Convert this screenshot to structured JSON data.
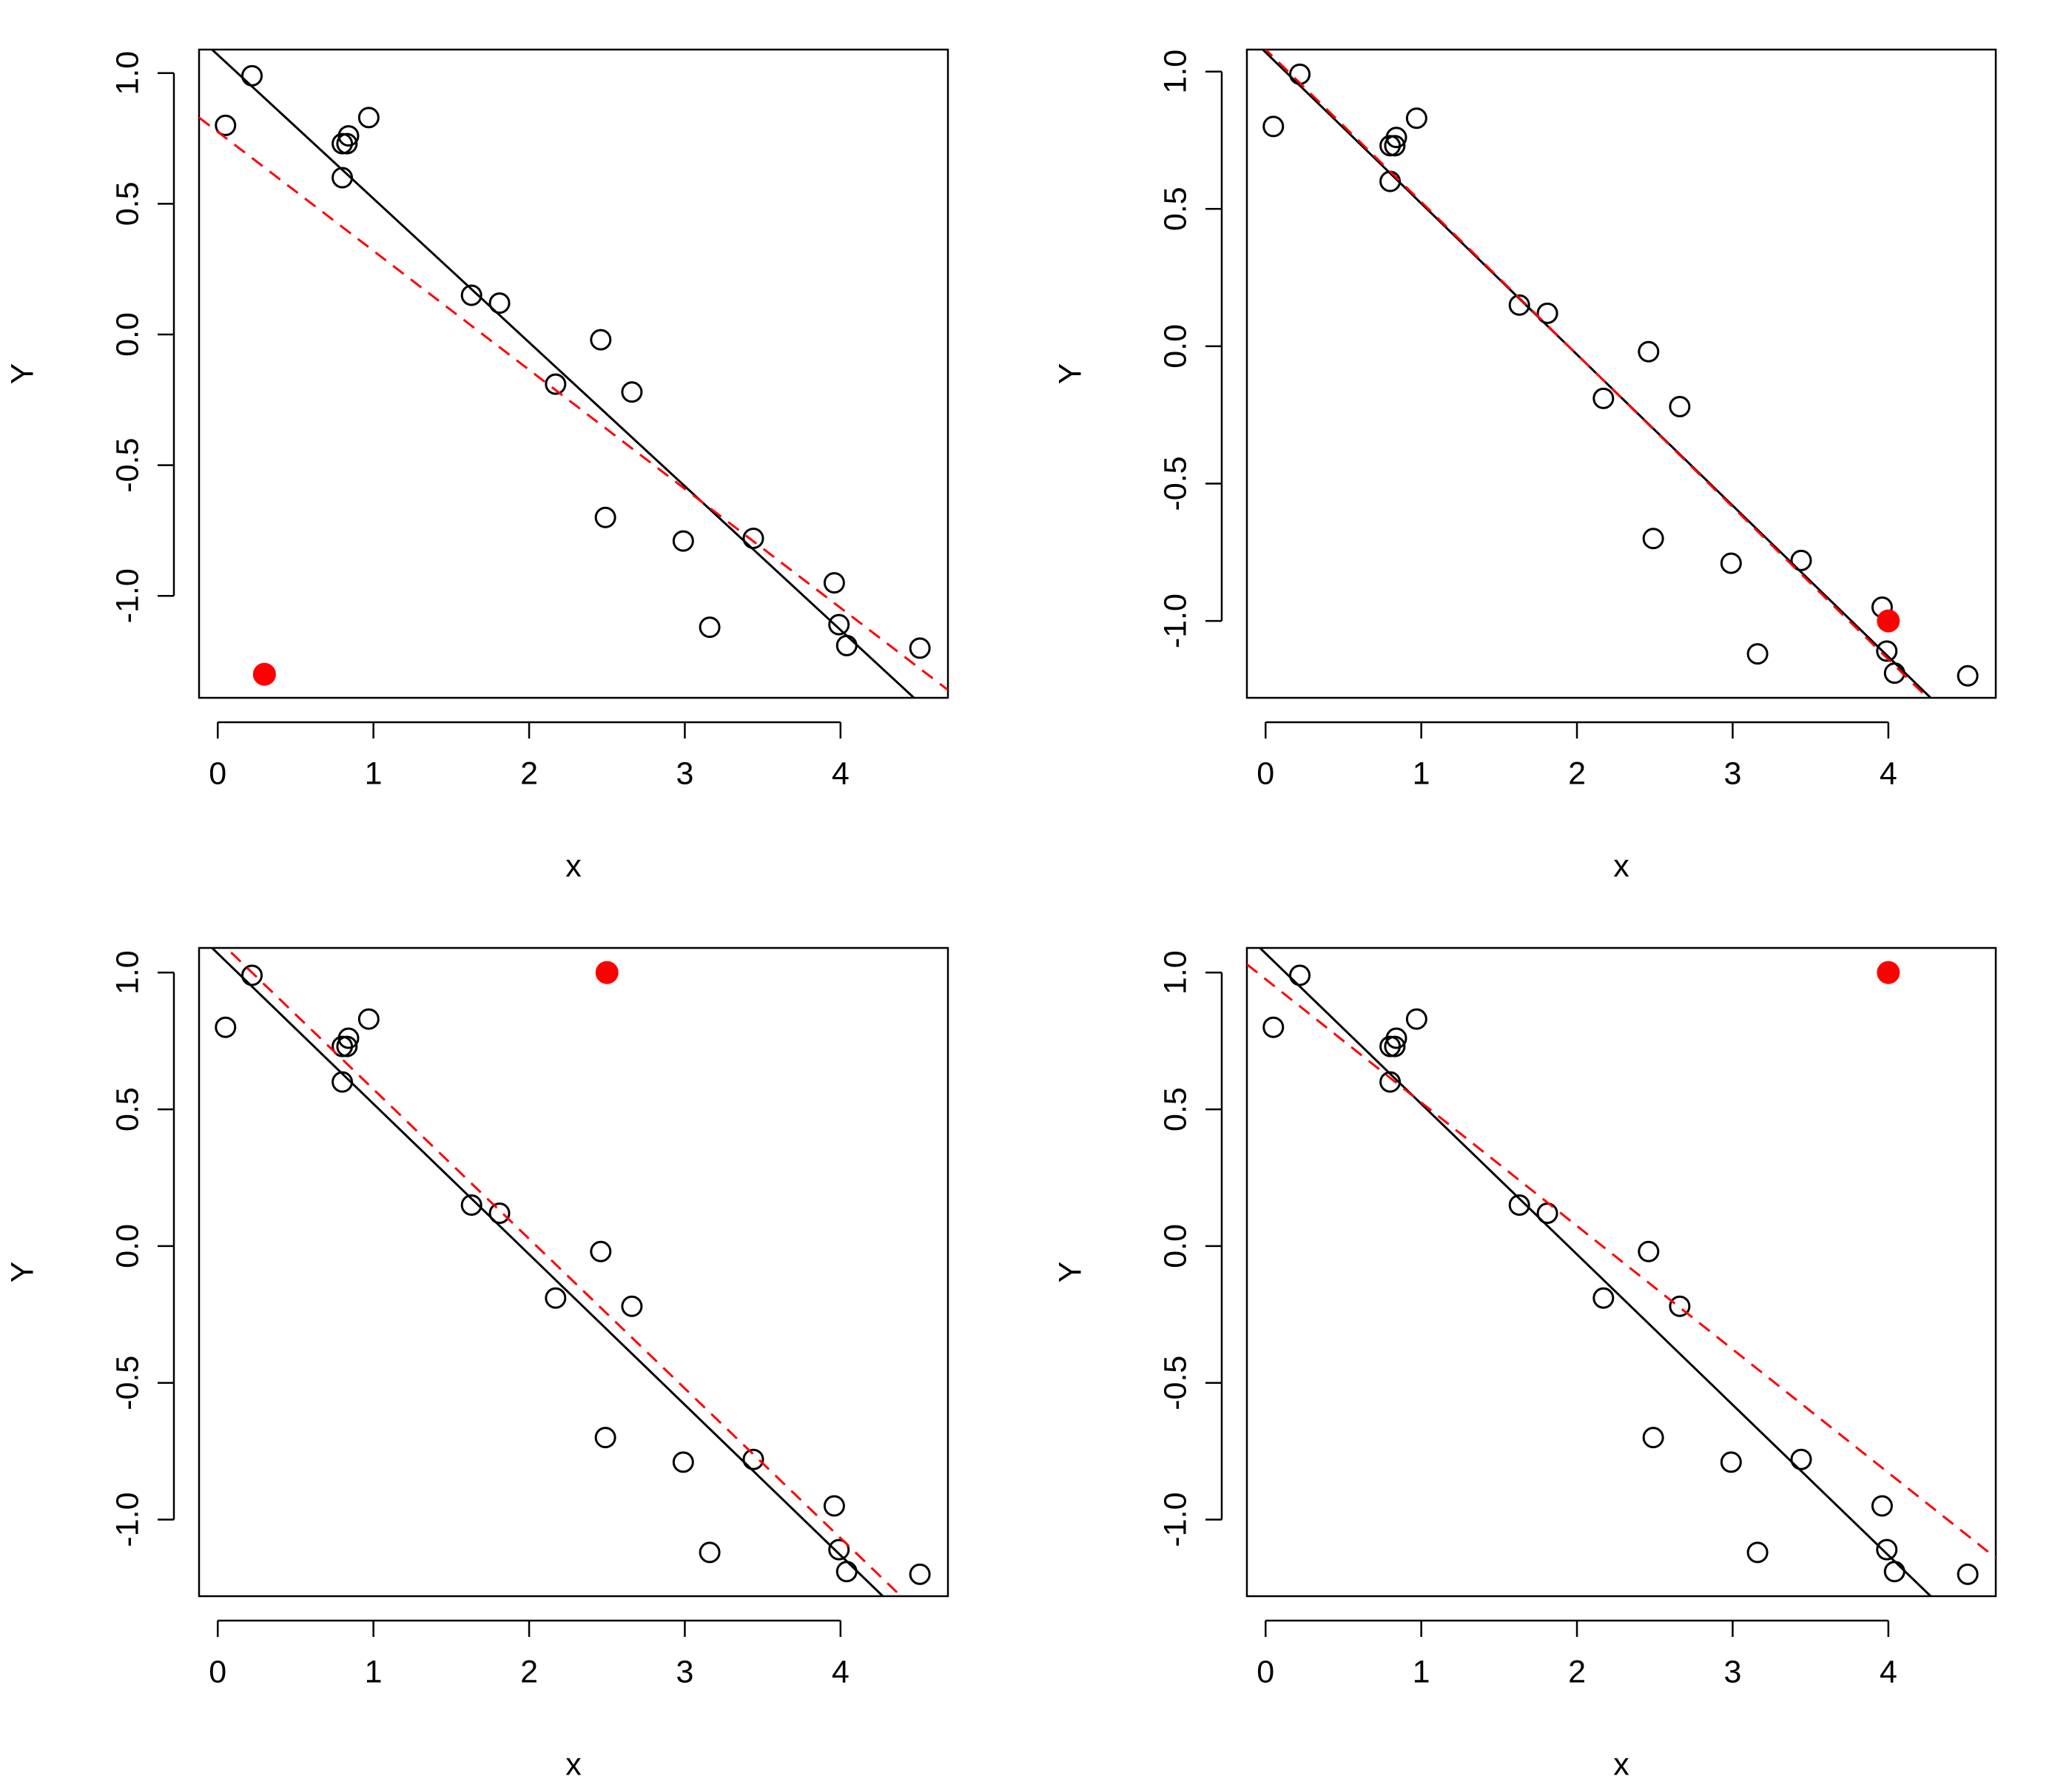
{
  "chart_data": [
    {
      "type": "scatter",
      "xlabel": "x",
      "ylabel": "Y",
      "xlim": [
        -0.12,
        4.69
      ],
      "ylim": [
        -1.39,
        1.09
      ],
      "xticks": [
        0,
        1,
        2,
        3,
        4
      ],
      "yticks": [
        {
          "value": -1,
          "label": "-1.0"
        },
        {
          "value": -0.5,
          "label": "-0.5"
        },
        {
          "value": 0,
          "label": "0.0"
        },
        {
          "value": 0.5,
          "label": "0.5"
        },
        {
          "value": 1,
          "label": "1.0"
        }
      ],
      "series": [
        {
          "color": "#000000",
          "marker": "open",
          "x": [
            0.05,
            0.22,
            0.8,
            0.8,
            0.84,
            0.83,
            0.97,
            1.63,
            1.81,
            2.17,
            2.46,
            2.49,
            2.66,
            2.99,
            3.16,
            3.44,
            3.96,
            3.99,
            4.04,
            4.51
          ],
          "values": [
            0.8,
            0.99,
            0.6,
            0.73,
            0.76,
            0.73,
            0.83,
            0.15,
            0.12,
            -0.19,
            -0.02,
            -0.7,
            -0.22,
            -0.79,
            -1.12,
            -0.78,
            -0.95,
            -1.11,
            -1.19,
            -1.2
          ]
        },
        {
          "color": "#ff0000",
          "marker": "filled",
          "x": [
            0.3
          ],
          "values": [
            -1.3
          ]
        },
        {
          "type": "line",
          "color": "#000000",
          "dash": false,
          "x": [
            -0.12,
            4.69
          ],
          "values": [
            1.136,
            -1.51
          ]
        },
        {
          "type": "line",
          "color": "#ff0000",
          "dash": true,
          "x": [
            -0.12,
            4.69
          ],
          "values": [
            0.83,
            -1.36
          ]
        }
      ]
    },
    {
      "type": "scatter",
      "xlabel": "x",
      "ylabel": "Y",
      "xlim": [
        -0.12,
        4.69
      ],
      "ylim": [
        -1.28,
        1.08
      ],
      "xticks": [
        0,
        1,
        2,
        3,
        4
      ],
      "yticks": [
        {
          "value": -1,
          "label": "-1.0"
        },
        {
          "value": -0.5,
          "label": "-0.5"
        },
        {
          "value": 0,
          "label": "0.0"
        },
        {
          "value": 0.5,
          "label": "0.5"
        },
        {
          "value": 1,
          "label": "1.0"
        }
      ],
      "series": [
        {
          "color": "#000000",
          "marker": "open",
          "x": [
            0.05,
            0.22,
            0.8,
            0.8,
            0.84,
            0.83,
            0.97,
            1.63,
            1.81,
            2.17,
            2.46,
            2.49,
            2.66,
            2.99,
            3.16,
            3.44,
            3.96,
            3.99,
            4.04,
            4.51
          ],
          "values": [
            0.8,
            0.99,
            0.6,
            0.73,
            0.76,
            0.73,
            0.83,
            0.15,
            0.12,
            -0.19,
            -0.02,
            -0.7,
            -0.22,
            -0.79,
            -1.12,
            -0.78,
            -0.95,
            -1.11,
            -1.19,
            -1.2
          ]
        },
        {
          "color": "#ff0000",
          "marker": "filled",
          "x": [
            4.0
          ],
          "values": [
            -1.0
          ]
        },
        {
          "type": "line",
          "color": "#000000",
          "dash": false,
          "x": [
            -0.12,
            4.69
          ],
          "values": [
            1.136,
            -1.51
          ]
        },
        {
          "type": "line",
          "color": "#ff0000",
          "dash": true,
          "x": [
            -0.12,
            4.69
          ],
          "values": [
            1.147,
            -1.523
          ]
        }
      ]
    },
    {
      "type": "scatter",
      "xlabel": "x",
      "ylabel": "Y",
      "xlim": [
        -0.12,
        4.69
      ],
      "ylim": [
        -1.28,
        1.09
      ],
      "xticks": [
        0,
        1,
        2,
        3,
        4
      ],
      "yticks": [
        {
          "value": -1,
          "label": "-1.0"
        },
        {
          "value": -0.5,
          "label": "-0.5"
        },
        {
          "value": 0,
          "label": "0.0"
        },
        {
          "value": 0.5,
          "label": "0.5"
        },
        {
          "value": 1,
          "label": "1.0"
        }
      ],
      "series": [
        {
          "color": "#000000",
          "marker": "open",
          "x": [
            0.05,
            0.22,
            0.8,
            0.8,
            0.84,
            0.83,
            0.97,
            1.63,
            1.81,
            2.17,
            2.46,
            2.49,
            2.66,
            2.99,
            3.16,
            3.44,
            3.96,
            3.99,
            4.04,
            4.51
          ],
          "values": [
            0.8,
            0.99,
            0.6,
            0.73,
            0.76,
            0.73,
            0.83,
            0.15,
            0.12,
            -0.19,
            -0.02,
            -0.7,
            -0.22,
            -0.79,
            -1.12,
            -0.78,
            -0.95,
            -1.11,
            -1.19,
            -1.2
          ]
        },
        {
          "color": "#ff0000",
          "marker": "filled",
          "x": [
            2.5
          ],
          "values": [
            1.0
          ]
        },
        {
          "type": "line",
          "color": "#000000",
          "dash": false,
          "x": [
            -0.12,
            4.69
          ],
          "values": [
            1.136,
            -1.51
          ]
        },
        {
          "type": "line",
          "color": "#ff0000",
          "dash": true,
          "x": [
            -0.12,
            4.69
          ],
          "values": [
            1.186,
            -1.445
          ]
        }
      ]
    },
    {
      "type": "scatter",
      "xlabel": "x",
      "ylabel": "Y",
      "xlim": [
        -0.12,
        4.69
      ],
      "ylim": [
        -1.28,
        1.09
      ],
      "xticks": [
        0,
        1,
        2,
        3,
        4
      ],
      "yticks": [
        {
          "value": -1,
          "label": "-1.0"
        },
        {
          "value": -0.5,
          "label": "-0.5"
        },
        {
          "value": 0,
          "label": "0.0"
        },
        {
          "value": 0.5,
          "label": "0.5"
        },
        {
          "value": 1,
          "label": "1.0"
        }
      ],
      "series": [
        {
          "color": "#000000",
          "marker": "open",
          "x": [
            0.05,
            0.22,
            0.8,
            0.8,
            0.84,
            0.83,
            0.97,
            1.63,
            1.81,
            2.17,
            2.46,
            2.49,
            2.66,
            2.99,
            3.16,
            3.44,
            3.96,
            3.99,
            4.04,
            4.51
          ],
          "values": [
            0.8,
            0.99,
            0.6,
            0.73,
            0.76,
            0.73,
            0.83,
            0.15,
            0.12,
            -0.19,
            -0.02,
            -0.7,
            -0.22,
            -0.79,
            -1.12,
            -0.78,
            -0.95,
            -1.11,
            -1.19,
            -1.2
          ]
        },
        {
          "color": "#ff0000",
          "marker": "filled",
          "x": [
            4.0
          ],
          "values": [
            1.0
          ]
        },
        {
          "type": "line",
          "color": "#000000",
          "dash": false,
          "x": [
            -0.12,
            4.69
          ],
          "values": [
            1.136,
            -1.51
          ]
        },
        {
          "type": "line",
          "color": "#ff0000",
          "dash": true,
          "x": [
            -0.12,
            4.69
          ],
          "values": [
            1.03,
            -1.14
          ]
        }
      ]
    }
  ]
}
